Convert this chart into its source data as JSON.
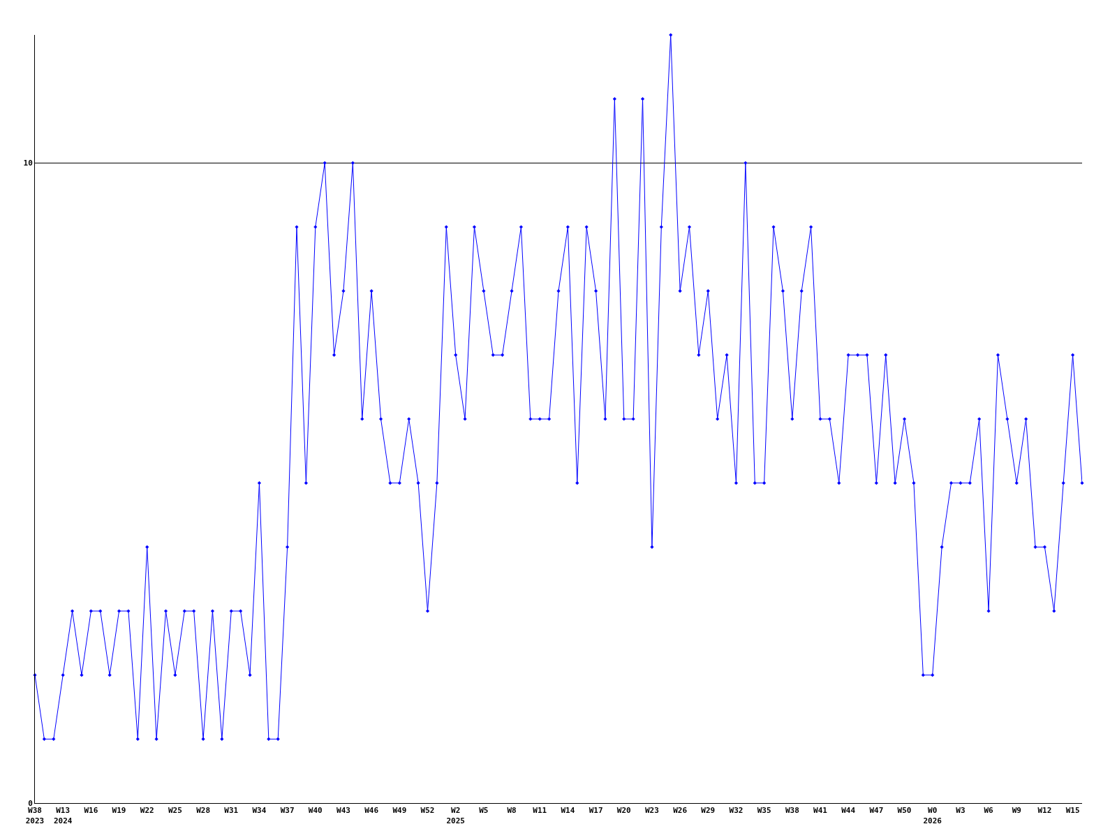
{
  "chart_data": {
    "type": "line",
    "categories": [
      "W38\n2023",
      null,
      null,
      "W13\n2024",
      null,
      null,
      "W16",
      null,
      null,
      "W19",
      null,
      null,
      "W22",
      null,
      null,
      "W25",
      null,
      null,
      "W28",
      null,
      null,
      "W31",
      null,
      null,
      "W34",
      null,
      null,
      "W37",
      null,
      null,
      "W40",
      null,
      null,
      "W43",
      null,
      null,
      "W46",
      null,
      null,
      "W49",
      null,
      null,
      "W52",
      null,
      null,
      "W2\n2025",
      null,
      null,
      "W5",
      null,
      null,
      "W8",
      null,
      null,
      "W11",
      null,
      null,
      "W14",
      null,
      null,
      "W17",
      null,
      null,
      "W20",
      null,
      null,
      "W23",
      null,
      null,
      "W26",
      null,
      null,
      "W29",
      null,
      null,
      "W32",
      null,
      null,
      "W35",
      null,
      null,
      "W38",
      null,
      null,
      "W41",
      null,
      null,
      "W44",
      null,
      null,
      "W47",
      null,
      null,
      "W50",
      null,
      null,
      "W0\n2026",
      null,
      null,
      "W3",
      null,
      null,
      "W6",
      null,
      null,
      "W9",
      null,
      null,
      "W12",
      null,
      null,
      "W15",
      null
    ],
    "series": [
      {
        "color": "#0000ff",
        "values": [
          2,
          1,
          1,
          2,
          3,
          2,
          3,
          3,
          2,
          3,
          3,
          1,
          4,
          1,
          3,
          2,
          3,
          3,
          1,
          3,
          1,
          3,
          3,
          2,
          5,
          1,
          1,
          4,
          9,
          5,
          9,
          10,
          7,
          8,
          10,
          6,
          8,
          6,
          5,
          5,
          6,
          5,
          3,
          5,
          9,
          7,
          6,
          9,
          8,
          7,
          7,
          8,
          9,
          6,
          6,
          6,
          8,
          9,
          5,
          9,
          8,
          6,
          11,
          6,
          6,
          11,
          4,
          9,
          12,
          8,
          9,
          7,
          8,
          6,
          7,
          5,
          10,
          5,
          5,
          9,
          8,
          6,
          8,
          9,
          6,
          6,
          5,
          7,
          7,
          7,
          5,
          7,
          5,
          6,
          5,
          2,
          2,
          4,
          5,
          5,
          5,
          6,
          3,
          7,
          6,
          5,
          6,
          4,
          4,
          3,
          5,
          7,
          5
        ]
      }
    ],
    "ylim": [
      0,
      12
    ],
    "yticks": [
      0,
      10
    ],
    "grid": "y",
    "marker": "diamond",
    "line_style": "solid"
  }
}
